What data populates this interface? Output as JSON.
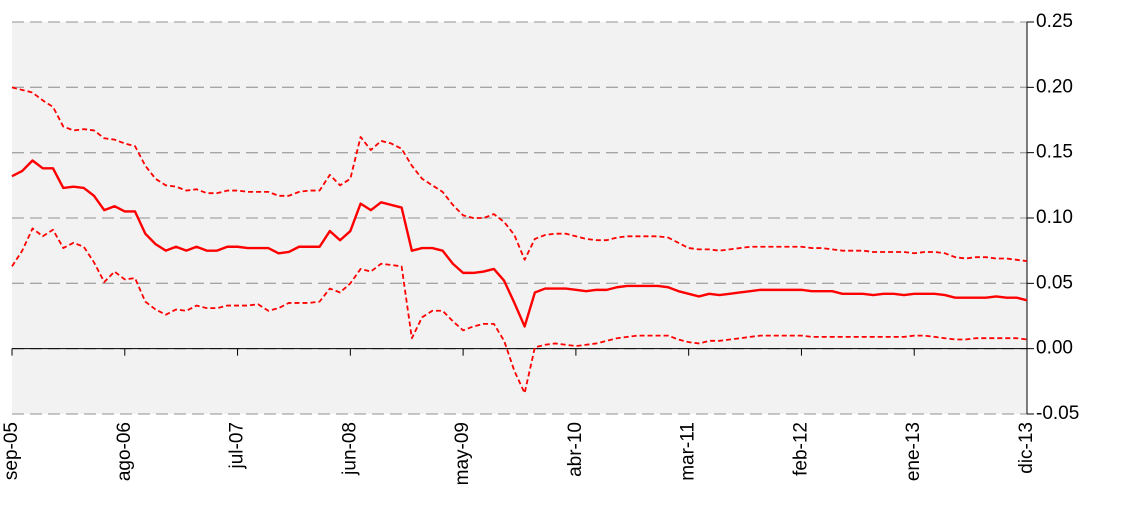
{
  "chart_data": {
    "type": "line",
    "categories": [
      "sep-05",
      null,
      null,
      null,
      null,
      null,
      null,
      null,
      null,
      null,
      null,
      "ago-06",
      null,
      null,
      null,
      null,
      null,
      null,
      null,
      null,
      null,
      null,
      "jul-07",
      null,
      null,
      null,
      null,
      null,
      null,
      null,
      null,
      null,
      null,
      "jun-08",
      null,
      null,
      null,
      null,
      null,
      null,
      null,
      null,
      null,
      null,
      "may-09",
      null,
      null,
      null,
      null,
      null,
      null,
      null,
      null,
      null,
      null,
      "abr-10",
      null,
      null,
      null,
      null,
      null,
      null,
      null,
      null,
      null,
      null,
      "mar-11",
      null,
      null,
      null,
      null,
      null,
      null,
      null,
      null,
      null,
      null,
      "feb-12",
      null,
      null,
      null,
      null,
      null,
      null,
      null,
      null,
      null,
      null,
      "ene-13",
      null,
      null,
      null,
      null,
      null,
      null,
      null,
      null,
      null,
      null,
      "dic-13"
    ],
    "series": [
      {
        "color": "#ff0000",
        "line_style": "solid",
        "values": [
          0.132,
          0.136,
          0.144,
          0.138,
          0.138,
          0.123,
          0.124,
          0.123,
          0.117,
          0.106,
          0.109,
          0.105,
          0.105,
          0.088,
          0.08,
          0.075,
          0.078,
          0.075,
          0.078,
          0.075,
          0.075,
          0.078,
          0.078,
          0.077,
          0.077,
          0.077,
          0.073,
          0.074,
          0.078,
          0.078,
          0.078,
          0.09,
          0.083,
          0.09,
          0.111,
          0.106,
          0.112,
          0.11,
          0.108,
          0.075,
          0.077,
          0.077,
          0.075,
          0.065,
          0.058,
          0.058,
          0.059,
          0.061,
          0.052,
          0.035,
          0.017,
          0.043,
          0.046,
          0.046,
          0.046,
          0.045,
          0.044,
          0.045,
          0.045,
          0.047,
          0.048,
          0.048,
          0.048,
          0.048,
          0.047,
          0.044,
          0.042,
          0.04,
          0.042,
          0.041,
          0.042,
          0.043,
          0.044,
          0.045,
          0.045,
          0.045,
          0.045,
          0.045,
          0.044,
          0.044,
          0.044,
          0.042,
          0.042,
          0.042,
          0.041,
          0.042,
          0.042,
          0.041,
          0.042,
          0.042,
          0.042,
          0.041,
          0.039,
          0.039,
          0.039,
          0.039,
          0.04,
          0.039,
          0.039,
          0.037
        ]
      },
      {
        "color": "#ff0000",
        "line_style": "dashed",
        "values": [
          0.2,
          0.198,
          0.196,
          0.19,
          0.185,
          0.17,
          0.167,
          0.168,
          0.167,
          0.161,
          0.16,
          0.157,
          0.155,
          0.14,
          0.13,
          0.125,
          0.124,
          0.121,
          0.122,
          0.119,
          0.119,
          0.121,
          0.121,
          0.12,
          0.12,
          0.12,
          0.117,
          0.117,
          0.12,
          0.121,
          0.121,
          0.133,
          0.125,
          0.13,
          0.162,
          0.152,
          0.159,
          0.157,
          0.153,
          0.14,
          0.13,
          0.125,
          0.12,
          0.11,
          0.102,
          0.1,
          0.1,
          0.103,
          0.097,
          0.087,
          0.068,
          0.084,
          0.087,
          0.088,
          0.088,
          0.086,
          0.084,
          0.083,
          0.083,
          0.085,
          0.086,
          0.086,
          0.086,
          0.086,
          0.085,
          0.081,
          0.077,
          0.076,
          0.076,
          0.075,
          0.076,
          0.077,
          0.078,
          0.078,
          0.078,
          0.078,
          0.078,
          0.078,
          0.077,
          0.077,
          0.076,
          0.075,
          0.075,
          0.075,
          0.074,
          0.074,
          0.074,
          0.074,
          0.073,
          0.074,
          0.074,
          0.073,
          0.07,
          0.069,
          0.07,
          0.07,
          0.069,
          0.069,
          0.068,
          0.067
        ]
      },
      {
        "color": "#ff0000",
        "line_style": "dashed",
        "values": [
          0.063,
          0.075,
          0.092,
          0.086,
          0.091,
          0.077,
          0.081,
          0.078,
          0.066,
          0.051,
          0.059,
          0.053,
          0.054,
          0.036,
          0.03,
          0.026,
          0.03,
          0.029,
          0.033,
          0.031,
          0.031,
          0.033,
          0.033,
          0.033,
          0.034,
          0.029,
          0.031,
          0.035,
          0.035,
          0.035,
          0.036,
          0.046,
          0.043,
          0.05,
          0.061,
          0.059,
          0.065,
          0.064,
          0.063,
          0.008,
          0.024,
          0.029,
          0.029,
          0.021,
          0.014,
          0.017,
          0.019,
          0.019,
          0.006,
          -0.017,
          -0.034,
          0.001,
          0.003,
          0.004,
          0.003,
          0.002,
          0.003,
          0.004,
          0.006,
          0.008,
          0.009,
          0.01,
          0.01,
          0.01,
          0.01,
          0.007,
          0.005,
          0.004,
          0.006,
          0.006,
          0.007,
          0.008,
          0.009,
          0.01,
          0.01,
          0.01,
          0.01,
          0.01,
          0.009,
          0.009,
          0.009,
          0.009,
          0.009,
          0.009,
          0.009,
          0.009,
          0.009,
          0.009,
          0.01,
          0.01,
          0.009,
          0.008,
          0.007,
          0.007,
          0.008,
          0.008,
          0.008,
          0.008,
          0.008,
          0.007
        ]
      }
    ],
    "ylim": [
      -0.05,
      0.25
    ],
    "yticks": [
      {
        "value": -0.05,
        "label": "-0.05"
      },
      {
        "value": 0,
        "label": "0.00"
      },
      {
        "value": 0.05,
        "label": "0.05"
      },
      {
        "value": 0.1,
        "label": "0.10"
      },
      {
        "value": 0.15,
        "label": "0.15"
      },
      {
        "value": 0.2,
        "label": "0.20"
      },
      {
        "value": 0.25,
        "label": "0.25"
      }
    ],
    "yaxis_side": "right",
    "grid": true,
    "background": "#f2f2f2"
  }
}
